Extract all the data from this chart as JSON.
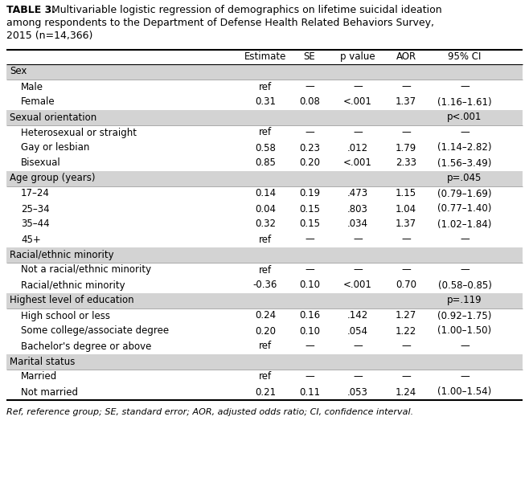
{
  "title_bold": "TABLE 3.",
  "title_line1_rest": " Multivariable logistic regression of demographics on lifetime suicidal ideation",
  "title_line2": "among respondents to the Department of Defense Health Related Behaviors Survey,",
  "title_line3": "2015 (n=14,366)",
  "col_headers": [
    "",
    "Estimate",
    "SE",
    "p value",
    "AOR",
    "95% CI"
  ],
  "footnote": "Ref, reference group; SE, standard error; AOR, adjusted odds ratio; CI, confidence interval.",
  "rows": [
    {
      "label": "Sex",
      "type": "header",
      "values": [
        "",
        "",
        "",
        "",
        ""
      ]
    },
    {
      "label": "Male",
      "type": "data",
      "indent": true,
      "values": [
        "ref",
        "—",
        "—",
        "—",
        "—"
      ]
    },
    {
      "label": "Female",
      "type": "data",
      "indent": true,
      "values": [
        "0.31",
        "0.08",
        "<.001",
        "1.37",
        "(1.16–1.61)"
      ]
    },
    {
      "label": "Sexual orientation",
      "type": "header",
      "values": [
        "",
        "",
        "",
        "",
        "p<.001"
      ]
    },
    {
      "label": "Heterosexual or straight",
      "type": "data",
      "indent": true,
      "values": [
        "ref",
        "—",
        "—",
        "—",
        "—"
      ]
    },
    {
      "label": "Gay or lesbian",
      "type": "data",
      "indent": true,
      "values": [
        "0.58",
        "0.23",
        ".012",
        "1.79",
        "(1.14–2.82)"
      ]
    },
    {
      "label": "Bisexual",
      "type": "data",
      "indent": true,
      "values": [
        "0.85",
        "0.20",
        "<.001",
        "2.33",
        "(1.56–3.49)"
      ]
    },
    {
      "label": "Age group (years)",
      "type": "header",
      "values": [
        "",
        "",
        "",
        "",
        "p=.045"
      ]
    },
    {
      "label": "17–24",
      "type": "data",
      "indent": true,
      "values": [
        "0.14",
        "0.19",
        ".473",
        "1.15",
        "(0.79–1.69)"
      ]
    },
    {
      "label": "25–34",
      "type": "data",
      "indent": true,
      "values": [
        "0.04",
        "0.15",
        ".803",
        "1.04",
        "(0.77–1.40)"
      ]
    },
    {
      "label": "35–44",
      "type": "data",
      "indent": true,
      "values": [
        "0.32",
        "0.15",
        ".034",
        "1.37",
        "(1.02–1.84)"
      ]
    },
    {
      "label": "45+",
      "type": "data",
      "indent": true,
      "values": [
        "ref",
        "—",
        "—",
        "—",
        "—"
      ]
    },
    {
      "label": "Racial/ethnic minority",
      "type": "header",
      "values": [
        "",
        "",
        "",
        "",
        ""
      ]
    },
    {
      "label": "Not a racial/ethnic minority",
      "type": "data",
      "indent": true,
      "values": [
        "ref",
        "—",
        "—",
        "—",
        "—"
      ]
    },
    {
      "label": "Racial/ethnic minority",
      "type": "data",
      "indent": true,
      "values": [
        "-0.36",
        "0.10",
        "<.001",
        "0.70",
        "(0.58–0.85)"
      ]
    },
    {
      "label": "Highest level of education",
      "type": "header",
      "values": [
        "",
        "",
        "",
        "",
        "p=.119"
      ]
    },
    {
      "label": "High school or less",
      "type": "data",
      "indent": true,
      "values": [
        "0.24",
        "0.16",
        ".142",
        "1.27",
        "(0.92–1.75)"
      ]
    },
    {
      "label": "Some college/associate degree",
      "type": "data",
      "indent": true,
      "values": [
        "0.20",
        "0.10",
        ".054",
        "1.22",
        "(1.00–1.50)"
      ]
    },
    {
      "label": "Bachelor's degree or above",
      "type": "data",
      "indent": true,
      "values": [
        "ref",
        "—",
        "—",
        "—",
        "—"
      ]
    },
    {
      "label": "Marital status",
      "type": "header",
      "values": [
        "",
        "",
        "",
        "",
        ""
      ]
    },
    {
      "label": "Married",
      "type": "data",
      "indent": true,
      "values": [
        "ref",
        "—",
        "—",
        "—",
        "—"
      ]
    },
    {
      "label": "Not married",
      "type": "data",
      "indent": true,
      "values": [
        "0.21",
        "0.11",
        ".053",
        "1.24",
        "(1.00–1.54)"
      ]
    }
  ],
  "header_bg": "#d3d3d3",
  "data_bg": "#ffffff",
  "col_header_bg": "#ffffff",
  "border_color": "#4a4a4a",
  "text_color": "#000000",
  "fs_title": 9.0,
  "fs_table": 8.5,
  "fs_footnote": 8.0
}
